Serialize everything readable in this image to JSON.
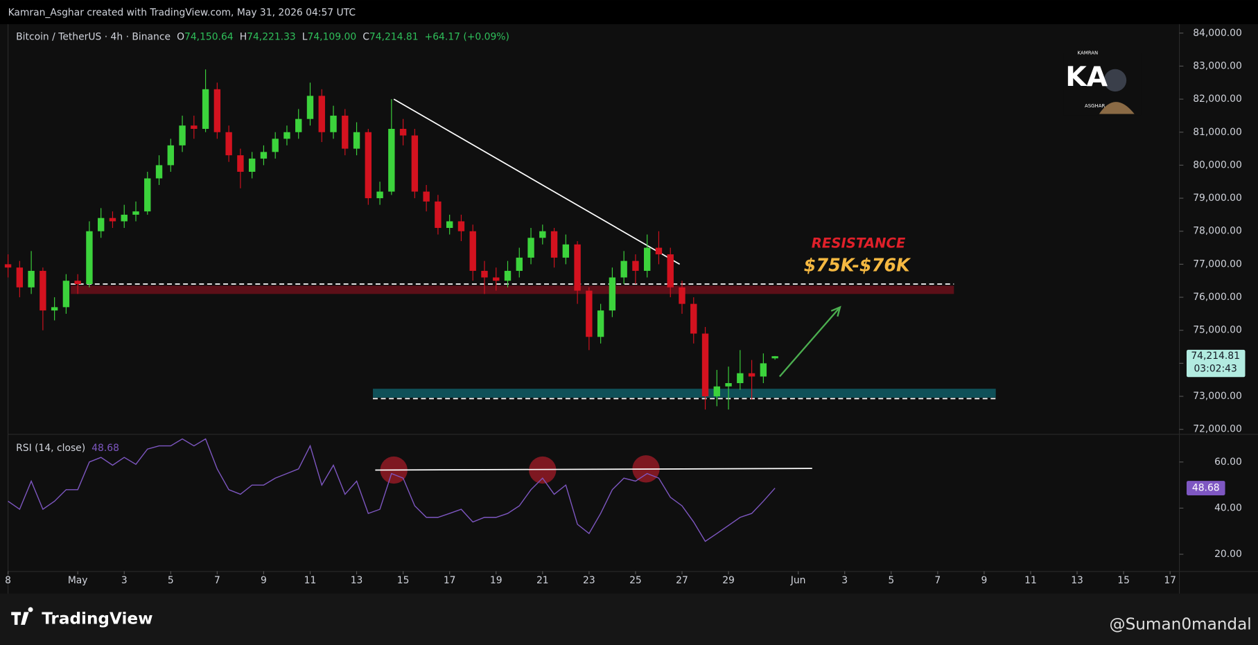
{
  "header": {
    "credit": "Kamran_Asghar created with TradingView.com, May 31, 2026 04:57 UTC"
  },
  "logo": {
    "top": "KAMRAN",
    "main": "KA",
    "bottom": "ASGHAR"
  },
  "footer": {
    "brand": "TradingView",
    "handle": "@Suman0mandal"
  },
  "chart_data": [
    {
      "type": "candlestick",
      "title": "Bitcoin / TetherUS · 4h · Binance",
      "ohlc": [
        {
          "label": "O",
          "value": "74,150.64"
        },
        {
          "label": "H",
          "value": "74,221.33"
        },
        {
          "label": "L",
          "value": "74,109.00"
        },
        {
          "label": "C",
          "value": "74,214.81"
        }
      ],
      "change": "+64.17 (+0.09%)",
      "x": [
        -3,
        -2.5,
        -2,
        -1.5,
        -1,
        -0.5,
        0,
        0.5,
        1,
        1.5,
        2,
        2.5,
        3,
        3.5,
        4,
        4.5,
        5,
        5.5,
        6,
        6.5,
        7,
        7.5,
        8,
        8.5,
        9,
        9.5,
        10,
        10.5,
        11,
        11.5,
        12,
        12.5,
        13,
        13.5,
        14,
        14.5,
        15,
        15.5,
        16,
        16.5,
        17,
        17.5,
        18,
        18.5,
        19,
        19.5,
        20,
        20.5,
        21,
        21.5,
        22,
        22.5,
        23,
        23.5,
        24,
        24.5,
        25,
        25.5,
        26,
        26.5,
        27,
        27.5,
        28,
        28.5,
        29,
        29.5,
        30
      ],
      "open": [
        77000,
        76900,
        76300,
        76800,
        75600,
        75700,
        76500,
        76400,
        78000,
        78400,
        78300,
        78500,
        78600,
        79600,
        80000,
        80600,
        81200,
        81100,
        82300,
        81000,
        80300,
        79800,
        80200,
        80400,
        80800,
        81000,
        81400,
        82100,
        81000,
        81500,
        80500,
        81000,
        79000,
        79200,
        81100,
        80900,
        79200,
        78900,
        78100,
        78300,
        78000,
        76800,
        76600,
        76500,
        76800,
        77200,
        77800,
        78000,
        77200,
        77600,
        76200,
        74800,
        75600,
        76600,
        77100,
        76800,
        77500,
        77300,
        76300,
        75800,
        74900,
        73000,
        73300,
        73400,
        73700,
        73600,
        74150.64
      ],
      "high": [
        77300,
        77100,
        77400,
        76900,
        76000,
        76700,
        76700,
        78300,
        78700,
        78600,
        78800,
        78900,
        79800,
        80300,
        80800,
        81500,
        81500,
        82900,
        82500,
        81200,
        80500,
        80400,
        80600,
        81000,
        81200,
        81700,
        82500,
        82300,
        81800,
        81700,
        81300,
        81100,
        79500,
        82000,
        81400,
        81100,
        79400,
        79100,
        78500,
        78500,
        78200,
        77100,
        76900,
        77100,
        77500,
        78100,
        78200,
        78100,
        77900,
        77700,
        76300,
        75800,
        76900,
        77400,
        77300,
        77900,
        78000,
        77500,
        76500,
        76000,
        75100,
        73800,
        73900,
        74400,
        74100,
        74300,
        74221.33
      ],
      "low": [
        76600,
        76000,
        76100,
        75000,
        75300,
        75500,
        76100,
        76300,
        77800,
        78100,
        78100,
        78300,
        78500,
        79400,
        79800,
        80400,
        80800,
        81000,
        80800,
        80100,
        79300,
        79600,
        80000,
        80200,
        80600,
        80800,
        81200,
        80700,
        80800,
        80300,
        80300,
        78800,
        78800,
        79100,
        80600,
        79000,
        78600,
        77900,
        77900,
        77700,
        76500,
        76100,
        76200,
        76300,
        76600,
        77000,
        77600,
        76900,
        77000,
        75800,
        74400,
        74600,
        75400,
        76400,
        76400,
        76600,
        77000,
        76000,
        75500,
        74600,
        72600,
        72700,
        72600,
        73200,
        72900,
        73400,
        74109
      ],
      "close": [
        76900,
        76300,
        76800,
        75600,
        75700,
        76500,
        76400,
        78000,
        78400,
        78300,
        78500,
        78600,
        79600,
        80000,
        80600,
        81200,
        81100,
        82300,
        81000,
        80300,
        79800,
        80200,
        80400,
        80800,
        81000,
        81400,
        82100,
        81000,
        81500,
        80500,
        81000,
        79000,
        79200,
        81100,
        80900,
        79200,
        78900,
        78100,
        78300,
        78000,
        76800,
        76600,
        76500,
        76800,
        77200,
        77800,
        78000,
        77200,
        77600,
        76200,
        74800,
        75600,
        76600,
        77100,
        76800,
        77500,
        77300,
        76300,
        75800,
        74900,
        73000,
        73300,
        73400,
        73700,
        73600,
        74000,
        74214.81
      ],
      "up_color": "#3cd33c",
      "down_color": "#d3121f",
      "xlim": [
        -3,
        47.4
      ],
      "ylim": [
        71860,
        84270
      ],
      "yticks": [
        {
          "value": 72000,
          "label": "72,000.00"
        },
        {
          "value": 73000,
          "label": "73,000.00"
        },
        {
          "value": 74000,
          "label": "74,000.00"
        },
        {
          "value": 75000,
          "label": "75,000.00"
        },
        {
          "value": 76000,
          "label": "76,000.00"
        },
        {
          "value": 77000,
          "label": "77,000.00"
        },
        {
          "value": 78000,
          "label": "78,000.00"
        },
        {
          "value": 79000,
          "label": "79,000.00"
        },
        {
          "value": 80000,
          "label": "80,000.00"
        },
        {
          "value": 81000,
          "label": "81,000.00"
        },
        {
          "value": 82000,
          "label": "82,000.00"
        },
        {
          "value": 83000,
          "label": "83,000.00"
        },
        {
          "value": 84000,
          "label": "84,000.00"
        }
      ],
      "last_price": {
        "value": 74214.81,
        "label": "74,214.81",
        "countdown": "03:02:43",
        "color": "#b2ebe0"
      },
      "annotations": {
        "trendline": {
          "x": [
            13.6,
            25.9
          ],
          "y": [
            82000,
            77000
          ],
          "color": "#ffffff"
        },
        "zones": [
          {
            "x": [
              -0.3,
              37.7
            ],
            "y": [
              76100,
              76350
            ],
            "color": "#5c0f18",
            "dash_y": 76400
          },
          {
            "x": [
              12.7,
              39.5
            ],
            "y": [
              72960,
              73230
            ],
            "color": "#0f5058",
            "dash_y": 72930
          }
        ],
        "arrow": {
          "x": [
            30.2,
            32.8
          ],
          "y": [
            73600,
            75700
          ],
          "color": "#4caf50"
        },
        "labels": [
          {
            "text": "RESISTANCE",
            "color": "#e0202a"
          },
          {
            "text": "$75K-$76K",
            "color": "#f5b841"
          }
        ]
      }
    },
    {
      "type": "line",
      "title": "RSI (14, close)",
      "x": [
        -3,
        -2.5,
        -2,
        -1.5,
        -1,
        -0.5,
        0,
        0.5,
        1,
        1.5,
        2,
        2.5,
        3,
        3.5,
        4,
        4.5,
        5,
        5.5,
        6,
        6.5,
        7,
        7.5,
        8,
        8.5,
        9,
        9.5,
        10,
        10.5,
        11,
        11.5,
        12,
        12.5,
        13,
        13.5,
        14,
        14.5,
        15,
        15.5,
        16,
        16.5,
        17,
        17.5,
        18,
        18.5,
        19,
        19.5,
        20,
        20.5,
        21,
        21.5,
        22,
        22.5,
        23,
        23.5,
        24,
        24.5,
        25,
        25.5,
        26,
        26.5,
        27,
        27.5,
        28,
        28.5,
        29,
        29.5,
        30
      ],
      "values": [
        43,
        39.5,
        51.7,
        39.5,
        43,
        48,
        48,
        60,
        62,
        58.6,
        62,
        59,
        65.6,
        67,
        67,
        70,
        67,
        70,
        57,
        48,
        46,
        50,
        50,
        53,
        55,
        57,
        67,
        50,
        58.6,
        46,
        51.7,
        37.7,
        39.5,
        55,
        53,
        41,
        36,
        36,
        37.7,
        39.5,
        34,
        36,
        36,
        37.7,
        41,
        48,
        53,
        46,
        50,
        33,
        29,
        37.7,
        48,
        53,
        51.7,
        55,
        53,
        44.7,
        41,
        34,
        25.6,
        29,
        32.5,
        36,
        37.7,
        43,
        48.68
      ],
      "color": "#7e57c2",
      "last_value": {
        "value": 48.68,
        "label": "48.68"
      },
      "xlim": [
        -3,
        47.4
      ],
      "ylim": [
        12.7,
        71.8
      ],
      "yticks": [
        {
          "value": 20,
          "label": "20.00"
        },
        {
          "value": 40,
          "label": "40.00"
        },
        {
          "value": 60,
          "label": "60.00"
        }
      ],
      "xticks": [
        {
          "value": -3,
          "label": "8"
        },
        {
          "value": 0,
          "label": "May"
        },
        {
          "value": 2,
          "label": "3"
        },
        {
          "value": 4,
          "label": "5"
        },
        {
          "value": 6,
          "label": "7"
        },
        {
          "value": 8,
          "label": "9"
        },
        {
          "value": 10,
          "label": "11"
        },
        {
          "value": 12,
          "label": "13"
        },
        {
          "value": 14,
          "label": "15"
        },
        {
          "value": 16,
          "label": "17"
        },
        {
          "value": 18,
          "label": "19"
        },
        {
          "value": 20,
          "label": "21"
        },
        {
          "value": 22,
          "label": "23"
        },
        {
          "value": 24,
          "label": "25"
        },
        {
          "value": 26,
          "label": "27"
        },
        {
          "value": 28,
          "label": "29"
        },
        {
          "value": 31,
          "label": "Jun"
        },
        {
          "value": 33,
          "label": "3"
        },
        {
          "value": 35,
          "label": "5"
        },
        {
          "value": 37,
          "label": "7"
        },
        {
          "value": 39,
          "label": "9"
        },
        {
          "value": 41,
          "label": "11"
        },
        {
          "value": 43,
          "label": "13"
        },
        {
          "value": 45,
          "label": "15"
        },
        {
          "value": 47,
          "label": "17"
        }
      ],
      "annotations": {
        "line": {
          "x": [
            12.8,
            31.6
          ],
          "y": [
            56.5,
            57.2
          ],
          "color": "#ffffff"
        },
        "circles": {
          "x": [
            13.6,
            20.0,
            24.45
          ],
          "y": [
            56.5,
            56.5,
            57
          ],
          "color": "#8b1a24"
        }
      }
    }
  ]
}
